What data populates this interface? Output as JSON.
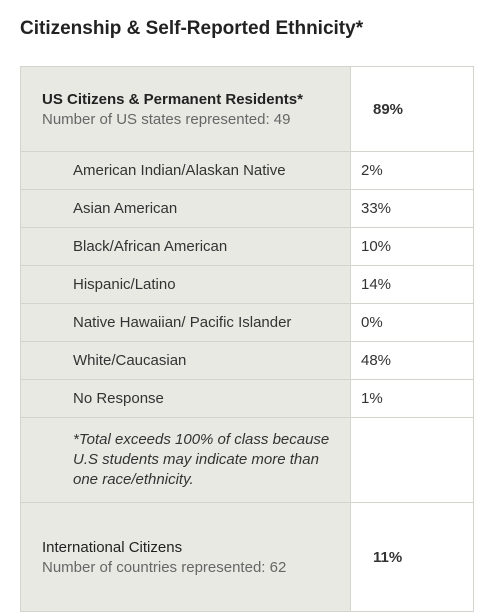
{
  "header": {
    "title": "Citizenship & Self-Reported Ethnicity*"
  },
  "table": {
    "us": {
      "label": "US Citizens & Permanent Residents*",
      "sub": "Number of US states represented: 49",
      "value": "89%"
    },
    "rows": [
      [
        "American Indian/Alaskan Native",
        "2%"
      ],
      [
        "Asian American",
        "33%"
      ],
      [
        "Black/African American",
        "10%"
      ],
      [
        "Hispanic/Latino",
        "14%"
      ],
      [
        "Native Hawaiian/ Pacific Islander",
        "0%"
      ],
      [
        "White/Caucasian",
        "48%"
      ],
      [
        "No Response",
        "1%"
      ]
    ],
    "note": "*Total exceeds 100% of class because U.S students may indicate more than one race/ethnicity.",
    "intl": {
      "label": "International Citizens",
      "sub": "Number of countries represented: 62",
      "value": "11%"
    }
  }
}
